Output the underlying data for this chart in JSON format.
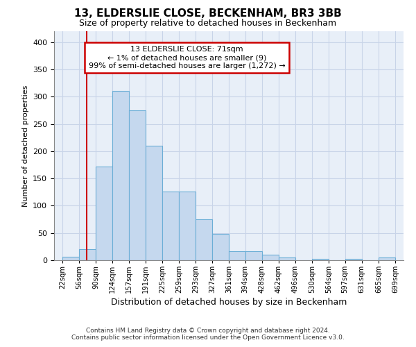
{
  "title_line1": "13, ELDERSLIE CLOSE, BECKENHAM, BR3 3BB",
  "title_line2": "Size of property relative to detached houses in Beckenham",
  "xlabel": "Distribution of detached houses by size in Beckenham",
  "ylabel": "Number of detached properties",
  "bar_color": "#c5d8ee",
  "bar_edge_color": "#6baed6",
  "bar_values": [
    7,
    20,
    172,
    310,
    275,
    210,
    126,
    126,
    75,
    49,
    16,
    16,
    10,
    5,
    0,
    3,
    0,
    3,
    0,
    5
  ],
  "bin_edges": [
    22,
    56,
    90,
    124,
    157,
    191,
    225,
    259,
    293,
    327,
    361,
    394,
    428,
    462,
    496,
    530,
    564,
    597,
    631,
    665,
    699
  ],
  "bin_labels": [
    "22sqm",
    "56sqm",
    "90sqm",
    "124sqm",
    "157sqm",
    "191sqm",
    "225sqm",
    "259sqm",
    "293sqm",
    "327sqm",
    "361sqm",
    "394sqm",
    "428sqm",
    "462sqm",
    "496sqm",
    "530sqm",
    "564sqm",
    "597sqm",
    "631sqm",
    "665sqm",
    "699sqm"
  ],
  "vline_x": 71,
  "vline_color": "#cc0000",
  "annotation_text": "13 ELDERSLIE CLOSE: 71sqm\n← 1% of detached houses are smaller (9)\n99% of semi-detached houses are larger (1,272) →",
  "annotation_box_color": "#cc0000",
  "ylim": [
    0,
    420
  ],
  "yticks": [
    0,
    50,
    100,
    150,
    200,
    250,
    300,
    350,
    400
  ],
  "grid_color": "#c8d4e8",
  "bg_color": "#e8eff8",
  "footer_line1": "Contains HM Land Registry data © Crown copyright and database right 2024.",
  "footer_line2": "Contains public sector information licensed under the Open Government Licence v3.0."
}
